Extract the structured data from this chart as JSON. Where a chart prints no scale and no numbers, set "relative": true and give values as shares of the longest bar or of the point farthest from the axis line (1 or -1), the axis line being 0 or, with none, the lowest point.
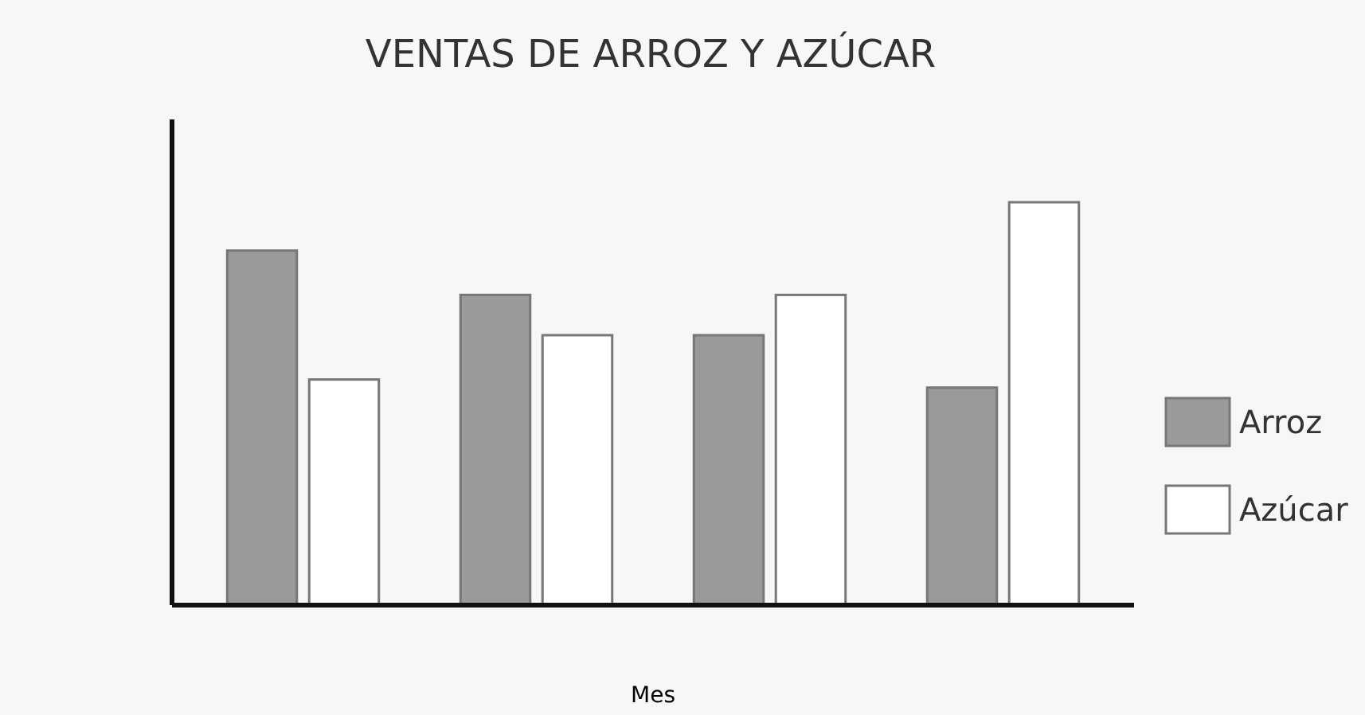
{
  "chart_data": {
    "type": "bar",
    "title": "VENTAS DE ARROZ Y AZÚCAR",
    "xlabel": "Mes",
    "relative": true,
    "categories": [
      null,
      null,
      null,
      null
    ],
    "series": [
      {
        "name": "Arroz",
        "color": "#9a9a9a",
        "values": [
          0.88,
          0.77,
          0.67,
          0.54
        ]
      },
      {
        "name": "Azúcar",
        "color": "#ffffff",
        "values": [
          0.56,
          0.67,
          0.77,
          1
        ]
      }
    ],
    "legend": "right"
  }
}
